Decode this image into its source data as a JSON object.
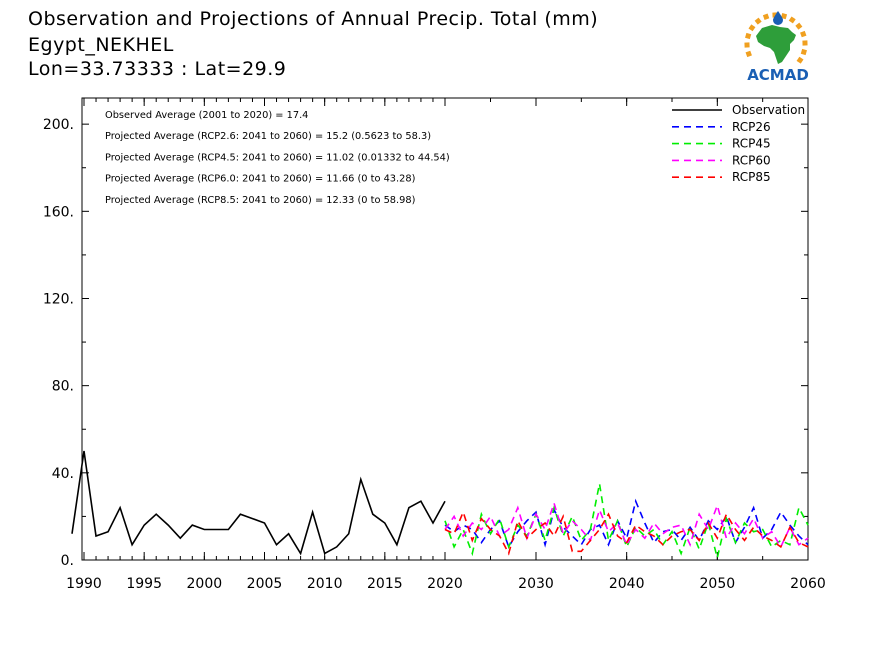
{
  "title_lines": [
    "Observation and Projections of Annual Precip. Total (mm)",
    "Egypt_NEKHEL",
    "Lon=33.73333 : Lat=29.9"
  ],
  "logo": {
    "text": "ACMAD",
    "colors": {
      "africa": "#2e9e3a",
      "rays": "#f0a020",
      "text": "#1a5fb4",
      "drop": "#1a5fb4"
    }
  },
  "chart_data": {
    "type": "line",
    "title": "Observation and Projections of Annual Precip. Total (mm)",
    "xlabel": "",
    "ylabel": "",
    "xlim": [
      1989,
      2060
    ],
    "ylim": [
      0,
      212
    ],
    "x_ticks": [
      1990,
      1995,
      2000,
      2005,
      2010,
      2015,
      2020,
      2030,
      2040,
      2050,
      2060
    ],
    "y_ticks": [
      0,
      40,
      80,
      120,
      160,
      200
    ],
    "y_tick_labels": [
      "0.",
      "40.",
      "80.",
      "120.",
      "160.",
      "200."
    ],
    "grid": false,
    "legend_position": "top-right",
    "annotations": [
      "Observed Average (2001 to 2020) = 17.4",
      "Projected Average (RCP2.6: 2041 to 2060) = 15.2 (0.5623 to 58.3)",
      "Projected Average (RCP4.5: 2041 to 2060) = 11.02 (0.01332 to 44.54)",
      "Projected Average (RCP6.0: 2041 to 2060) = 11.66 (0 to 43.28)",
      "Projected Average (RCP8.5: 2041 to 2060) = 12.33 (0 to 58.98)"
    ],
    "series": [
      {
        "name": "Observation",
        "color": "#000000",
        "dash": "solid",
        "x": [
          1989,
          1990,
          1991,
          1992,
          1993,
          1994,
          1995,
          1996,
          1997,
          1998,
          1999,
          2000,
          2001,
          2002,
          2003,
          2004,
          2005,
          2006,
          2007,
          2008,
          2009,
          2010,
          2011,
          2012,
          2013,
          2014,
          2015,
          2016,
          2017,
          2018,
          2019,
          2020
        ],
        "y": [
          12,
          50,
          11,
          13,
          24,
          7,
          16,
          21,
          16,
          10,
          16,
          14,
          14,
          14,
          21,
          19,
          17,
          7,
          12,
          3,
          22,
          3,
          6,
          12,
          37,
          21,
          17,
          7,
          24,
          27,
          17,
          27
        ]
      },
      {
        "name": "RCP26",
        "color": "#0000ff",
        "dash": "dashed",
        "x": [
          2020,
          2021,
          2022,
          2023,
          2024,
          2025,
          2026,
          2027,
          2028,
          2029,
          2030,
          2031,
          2032,
          2033,
          2034,
          2035,
          2036,
          2037,
          2038,
          2039,
          2040,
          2041,
          2042,
          2043,
          2044,
          2045,
          2046,
          2047,
          2048,
          2049,
          2050,
          2051,
          2052,
          2053,
          2054,
          2055,
          2056,
          2057,
          2058,
          2059,
          2060
        ],
        "y": [
          16,
          13,
          16,
          14,
          8,
          14,
          18,
          6,
          13,
          18,
          22,
          7,
          23,
          15,
          11,
          7,
          14,
          16,
          7,
          18,
          10,
          27,
          17,
          8,
          13,
          14,
          9,
          15,
          9,
          18,
          14,
          20,
          8,
          15,
          24,
          10,
          14,
          22,
          16,
          11,
          7
        ]
      },
      {
        "name": "RCP45",
        "color": "#00ee00",
        "dash": "dashed",
        "x": [
          2020,
          2021,
          2022,
          2023,
          2024,
          2025,
          2026,
          2027,
          2028,
          2029,
          2030,
          2031,
          2032,
          2033,
          2034,
          2035,
          2036,
          2037,
          2038,
          2039,
          2040,
          2041,
          2042,
          2043,
          2044,
          2045,
          2046,
          2047,
          2048,
          2049,
          2050,
          2051,
          2052,
          2053,
          2054,
          2055,
          2056,
          2057,
          2058,
          2059,
          2060
        ],
        "y": [
          18,
          6,
          14,
          3,
          21,
          12,
          19,
          6,
          16,
          11,
          21,
          9,
          24,
          11,
          20,
          9,
          14,
          35,
          9,
          18,
          6,
          15,
          11,
          14,
          7,
          13,
          3,
          15,
          5,
          17,
          1,
          19,
          8,
          17,
          13,
          14,
          6,
          9,
          7,
          24,
          16
        ]
      },
      {
        "name": "RCP60",
        "color": "#ff00ff",
        "dash": "dashed",
        "x": [
          2020,
          2021,
          2022,
          2023,
          2024,
          2025,
          2026,
          2027,
          2028,
          2029,
          2030,
          2031,
          2032,
          2033,
          2034,
          2035,
          2036,
          2037,
          2038,
          2039,
          2040,
          2041,
          2042,
          2043,
          2044,
          2045,
          2046,
          2047,
          2048,
          2049,
          2050,
          2051,
          2052,
          2053,
          2054,
          2055,
          2056,
          2057,
          2058,
          2059,
          2060
        ],
        "y": [
          14,
          20,
          11,
          17,
          14,
          20,
          11,
          14,
          24,
          10,
          21,
          14,
          26,
          12,
          18,
          14,
          9,
          23,
          13,
          17,
          7,
          14,
          10,
          17,
          12,
          15,
          16,
          7,
          21,
          14,
          25,
          10,
          17,
          12,
          19,
          10,
          13,
          6,
          15,
          7,
          10
        ]
      },
      {
        "name": "RCP85",
        "color": "#ff0000",
        "dash": "dashed",
        "x": [
          2020,
          2021,
          2022,
          2023,
          2024,
          2025,
          2026,
          2027,
          2028,
          2029,
          2030,
          2031,
          2032,
          2033,
          2034,
          2035,
          2036,
          2037,
          2038,
          2039,
          2040,
          2041,
          2042,
          2043,
          2044,
          2045,
          2046,
          2047,
          2048,
          2049,
          2050,
          2051,
          2052,
          2053,
          2054,
          2055,
          2056,
          2057,
          2058,
          2059,
          2060
        ],
        "y": [
          14,
          12,
          22,
          9,
          19,
          14,
          11,
          3,
          18,
          10,
          14,
          17,
          11,
          20,
          4,
          4,
          9,
          14,
          21,
          11,
          8,
          16,
          13,
          11,
          7,
          11,
          13,
          14,
          9,
          17,
          10,
          21,
          14,
          9,
          15,
          11,
          9,
          6,
          15,
          8,
          6
        ]
      }
    ]
  }
}
